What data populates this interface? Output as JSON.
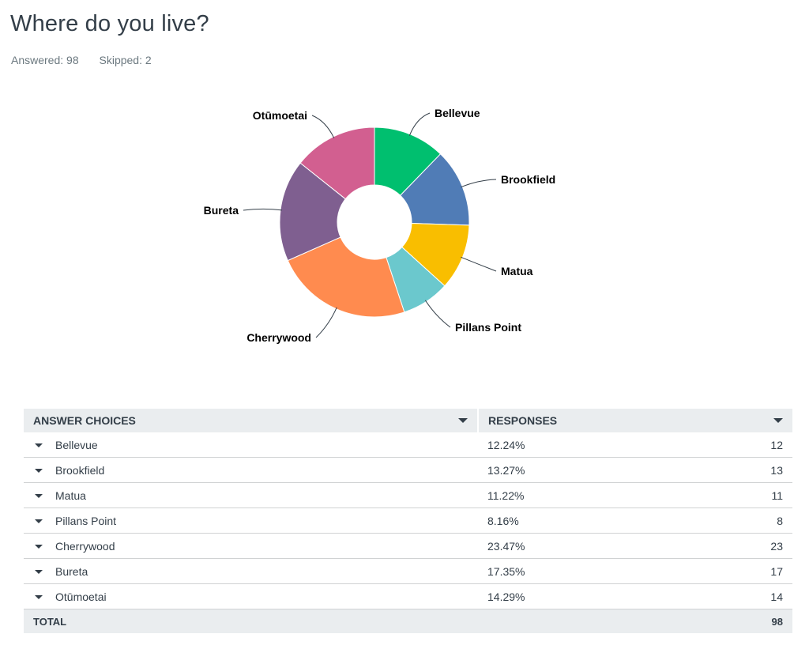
{
  "question": {
    "title": "Where do you live?",
    "answered": "Answered: 98",
    "skipped": "Skipped: 2"
  },
  "chart_data": {
    "type": "pie",
    "style": "donut",
    "categories": [
      "Bellevue",
      "Brookfield",
      "Matua",
      "Pillans Point",
      "Cherrywood",
      "Bureta",
      "Otūmoetai"
    ],
    "values": [
      12,
      13,
      11,
      8,
      23,
      17,
      14
    ],
    "colors": [
      "#00bf6f",
      "#507cb6",
      "#f9be00",
      "#6bc8cd",
      "#ff8b4f",
      "#7f5f90",
      "#d25f90"
    ]
  },
  "table": {
    "headers": {
      "choice": "ANSWER CHOICES",
      "responses": "RESPONSES"
    },
    "rows": [
      {
        "label": "Bellevue",
        "percent": "12.24%",
        "count": "12"
      },
      {
        "label": "Brookfield",
        "percent": "13.27%",
        "count": "13"
      },
      {
        "label": "Matua",
        "percent": "11.22%",
        "count": "11"
      },
      {
        "label": "Pillans Point",
        "percent": "8.16%",
        "count": "8"
      },
      {
        "label": "Cherrywood",
        "percent": "23.47%",
        "count": "23"
      },
      {
        "label": "Bureta",
        "percent": "17.35%",
        "count": "17"
      },
      {
        "label": "Otūmoetai",
        "percent": "14.29%",
        "count": "14"
      }
    ],
    "total_label": "TOTAL",
    "total_count": "98"
  }
}
